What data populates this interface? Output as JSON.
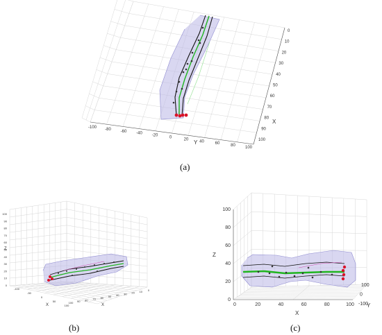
{
  "panels": [
    {
      "caption": "(a)",
      "x_axis": {
        "label": "X",
        "ticks": [
          "0",
          "10",
          "20",
          "30",
          "40",
          "50",
          "60",
          "70",
          "80",
          "90",
          "100"
        ]
      },
      "y_axis": {
        "label": "Y",
        "ticks": [
          "-100",
          "-80",
          "-60",
          "-40",
          "-20",
          "0",
          "20",
          "40",
          "60",
          "80",
          "100"
        ]
      }
    },
    {
      "caption": "(b)",
      "x_axis": {
        "label": "X",
        "ticks": [
          "-100",
          "-50",
          "0",
          "50",
          "100"
        ]
      },
      "y_axis": {
        "label": "X",
        "ticks": [
          "100",
          "90",
          "80",
          "70",
          "60",
          "50",
          "40",
          "30",
          "20",
          "10",
          "0"
        ]
      },
      "z_axis": {
        "label": "Z",
        "ticks": [
          "100",
          "90",
          "80",
          "70",
          "60",
          "50",
          "40",
          "30",
          "20",
          "10",
          "0"
        ]
      }
    },
    {
      "caption": "(c)",
      "x_axis": {
        "label": "X",
        "ticks": [
          "0",
          "20",
          "40",
          "60",
          "80",
          "100"
        ]
      },
      "y_axis": {
        "label": "Y",
        "ticks": [
          "100",
          "0",
          "-100"
        ]
      },
      "z_axis": {
        "label": "Z",
        "ticks": [
          "0",
          "20",
          "40",
          "60",
          "80",
          "100"
        ]
      }
    }
  ],
  "colors": {
    "surface": "#b9b6e6",
    "centerline": "#1fb51f",
    "boundary": "#111111",
    "points": "#333333",
    "endpoints": "#d9142a",
    "grid": "#d6d6d6",
    "axis": "#555555"
  }
}
